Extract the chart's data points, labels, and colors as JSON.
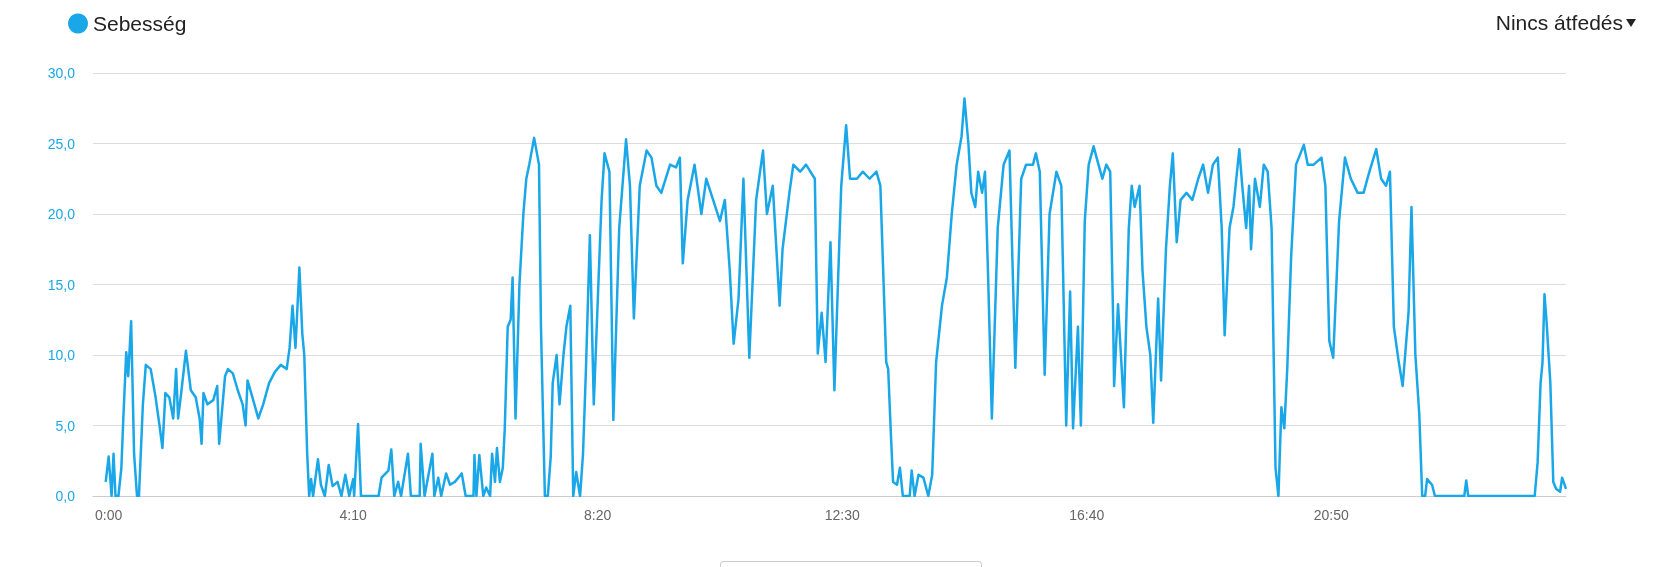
{
  "chart_data": {
    "type": "line",
    "annotations": [
      "Nincs átfedés"
    ],
    "legend": "top left",
    "grid": "y",
    "marker": "none",
    "line_style": "solid",
    "xlim": [
      -16,
      1490
    ],
    "xticks": [
      {
        "value": 0,
        "label": "0:00"
      },
      {
        "value": 250,
        "label": "4:10"
      },
      {
        "value": 500,
        "label": "8:20"
      },
      {
        "value": 750,
        "label": "12:30"
      },
      {
        "value": 1000,
        "label": "16:40"
      },
      {
        "value": 1250,
        "label": "20:50"
      }
    ],
    "ylim": [
      0,
      30
    ],
    "yticks": [
      {
        "value": 0,
        "label": "0,0"
      },
      {
        "value": 5,
        "label": "5,0"
      },
      {
        "value": 10,
        "label": "10,0"
      },
      {
        "value": 15,
        "label": "15,0"
      },
      {
        "value": 20,
        "label": "20,0"
      },
      {
        "value": 25,
        "label": "25,0"
      },
      {
        "value": 30,
        "label": "30,0"
      }
    ],
    "series": [
      {
        "name": "Sebesség",
        "color": "#1aa7e8",
        "x": [
          -3,
          0,
          3,
          5,
          7,
          10,
          13,
          15,
          18,
          20,
          23,
          26,
          29,
          31,
          35,
          38,
          43,
          48,
          52,
          55,
          58,
          62,
          66,
          69,
          71,
          74,
          79,
          84,
          89,
          93,
          95,
          97,
          101,
          107,
          111,
          113,
          119,
          122,
          127,
          132,
          137,
          140,
          142,
          147,
          153,
          158,
          164,
          170,
          176,
          182,
          185,
          188,
          191,
          195,
          198,
          200,
          203,
          205,
          207,
          209,
          214,
          217,
          221,
          225,
          229,
          234,
          238,
          242,
          246,
          250,
          251,
          255,
          258,
          276,
          279,
          286,
          289,
          292,
          296,
          299,
          306,
          309,
          318,
          319,
          323,
          331,
          333,
          337,
          340,
          345,
          349,
          354,
          361,
          365,
          373,
          374,
          376,
          379,
          383,
          386,
          390,
          392,
          395,
          397,
          400,
          403,
          405,
          408,
          411,
          413,
          416,
          420,
          424,
          427,
          430,
          435,
          440,
          442,
          446,
          449,
          452,
          454,
          458,
          461,
          465,
          468,
          472,
          475,
          478,
          482,
          485,
          488,
          492,
          496,
          504,
          507,
          512,
          516,
          522,
          529,
          533,
          537,
          543,
          550,
          555,
          560,
          565,
          574,
          580,
          584,
          587,
          592,
          599,
          606,
          611,
          618,
          625,
          630,
          635,
          639,
          644,
          649,
          655,
          662,
          669,
          673,
          679,
          686,
          689,
          696,
          700,
          707,
          713,
          722,
          725,
          729,
          733,
          738,
          742,
          749,
          754,
          758,
          765,
          771,
          778,
          785,
          789,
          795,
          797,
          800,
          802,
          806,
          809,
          812,
          819,
          821,
          824,
          828,
          833,
          838,
          842,
          846,
          852,
          857,
          862,
          867,
          872,
          875,
          879,
          882,
          886,
          889,
          893,
          896,
          899,
          903,
          909,
          915,
          921,
          927,
          933,
          938,
          945,
          948,
          952,
          957,
          962,
          969,
          974,
          979,
          983,
          986,
          991,
          994,
          998,
          1002,
          1007,
          1012,
          1016,
          1020,
          1024,
          1027,
          1028,
          1032,
          1038,
          1043,
          1046,
          1049,
          1054,
          1057,
          1061,
          1065,
          1068,
          1073,
          1076,
          1081,
          1085,
          1088,
          1092,
          1096,
          1102,
          1108,
          1114,
          1119,
          1124,
          1129,
          1134,
          1138,
          1141,
          1146,
          1150,
          1156,
          1159,
          1163,
          1166,
          1168,
          1172,
          1177,
          1181,
          1185,
          1189,
          1193,
          1196,
          1199,
          1202,
          1205,
          1209,
          1214,
          1222,
          1226,
          1232,
          1240,
          1244,
          1248,
          1252,
          1258,
          1264,
          1270,
          1277,
          1283,
          1289,
          1296,
          1301,
          1306,
          1310,
          1314,
          1319,
          1323,
          1329,
          1332,
          1336,
          1340,
          1343,
          1346,
          1348,
          1353,
          1356,
          1386,
          1388,
          1390,
          1458,
          1461,
          1464,
          1466,
          1468,
          1470,
          1474,
          1477,
          1480,
          1484,
          1486,
          1490
        ],
        "values": [
          1,
          2.8,
          0,
          3,
          0,
          0,
          2,
          5.5,
          10.2,
          8.5,
          12.4,
          3,
          0,
          0,
          6.5,
          9.3,
          9,
          7,
          5,
          3.4,
          7.3,
          7,
          5.5,
          9,
          5.5,
          7.2,
          10.3,
          7.5,
          7,
          5.5,
          3.7,
          7.3,
          6.5,
          6.8,
          7.8,
          3.7,
          8.5,
          9,
          8.7,
          7.5,
          6.5,
          5,
          8.2,
          7,
          5.5,
          6.5,
          8,
          8.8,
          9.3,
          9,
          10.5,
          13.5,
          10.5,
          16.2,
          11.5,
          10,
          3,
          0,
          1.2,
          0,
          2.6,
          0.8,
          0,
          2.2,
          0.7,
          1,
          0,
          1.5,
          0,
          1.2,
          0,
          5.1,
          0,
          0,
          1.3,
          1.8,
          3.3,
          0,
          1,
          0,
          3,
          0,
          0,
          3.7,
          0,
          3,
          0,
          1.3,
          0,
          1.6,
          0.8,
          1,
          1.6,
          0,
          0,
          2.9,
          0,
          2.9,
          0,
          0.6,
          0,
          3,
          1,
          3.4,
          1,
          2,
          4.8,
          12,
          12.5,
          15.5,
          5.5,
          15,
          20,
          22.5,
          23.5,
          25.4,
          23.5,
          12,
          0,
          0,
          2.8,
          8,
          10,
          6.5,
          10,
          12,
          13.5,
          0,
          1.7,
          0,
          3,
          9,
          18.5,
          6.5,
          21,
          24.3,
          23,
          5.4,
          19,
          25.3,
          22,
          12.6,
          22,
          24.5,
          24,
          22,
          21.5,
          23.5,
          23.3,
          24,
          16.5,
          21,
          23.5,
          20,
          22.5,
          21,
          19.5,
          21,
          16,
          10.8,
          14,
          22.5,
          9.8,
          21,
          24.5,
          20,
          22,
          13.5,
          17.5,
          21.5,
          23.5,
          23,
          23.5,
          22.5,
          10.1,
          13,
          9.5,
          18,
          7.5,
          22,
          26.3,
          22.5,
          22.5,
          23,
          22.5,
          23,
          22,
          9.5,
          9,
          4,
          1,
          0.8,
          2,
          0,
          0,
          1.8,
          0,
          1.5,
          1.3,
          0,
          1.5,
          9.5,
          13.5,
          15.5,
          20,
          23.5,
          25.5,
          28.2,
          25,
          21.5,
          20.5,
          23,
          21.5,
          23,
          16,
          5.5,
          19,
          23.5,
          24.5,
          9.1,
          22.5,
          23.5,
          23.5,
          24.3,
          23,
          8.6,
          20,
          23,
          22,
          5,
          14.5,
          4.8,
          12,
          5,
          19.5,
          23.5,
          24.8,
          23.5,
          22.5,
          23.5,
          23,
          12.5,
          7.8,
          13.6,
          6.3,
          19,
          22,
          20.5,
          22,
          16,
          12,
          10,
          5.2,
          14,
          8.2,
          17.5,
          22,
          24.3,
          18,
          21,
          21.5,
          21,
          22.5,
          23.5,
          21.5,
          23.5,
          24,
          19,
          11.4,
          19,
          20.5,
          24.6,
          22,
          19,
          22,
          17.5,
          22.5,
          20.5,
          23.5,
          23,
          19,
          2,
          0,
          6.3,
          4.8,
          9,
          17,
          23.5,
          24.9,
          23.5,
          23.5,
          24,
          22,
          11,
          9.8,
          19.5,
          24,
          22.5,
          21.5,
          21.5,
          23,
          24.6,
          22.5,
          22,
          23,
          12,
          9.5,
          7.8,
          13,
          20.5,
          10,
          5.8,
          0,
          0,
          1.2,
          0.8,
          0,
          0,
          1.1,
          0,
          0,
          2.4,
          8,
          9.5,
          14.3,
          12.5,
          8,
          1,
          0.5,
          0.3,
          1.3,
          0.5
        ]
      }
    ]
  }
}
